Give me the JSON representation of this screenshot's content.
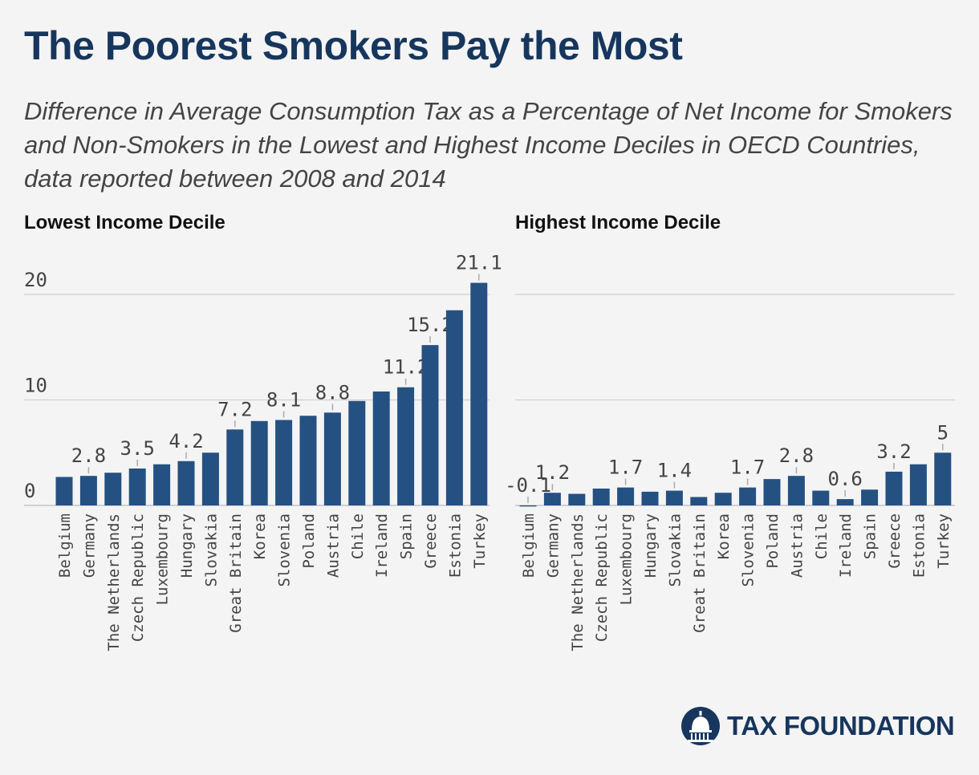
{
  "header": {
    "title": "The Poorest Smokers Pay the Most",
    "subtitle": "Difference in Average Consumption Tax as a Percentage of Net Income for Smokers and Non-Smokers in the Lowest and Highest Income Deciles in OECD Countries, data reported between 2008 and 2014"
  },
  "brand": {
    "name": "TAX FOUNDATION",
    "color": "#17365d"
  },
  "colors": {
    "bar": "#245182",
    "grid": "#d0d0d0",
    "text": "#444444"
  },
  "chart_data": [
    {
      "type": "bar",
      "title": "Lowest Income Decile",
      "categories": [
        "Belgium",
        "Germany",
        "The Netherlands",
        "Czech Republic",
        "Luxembourg",
        "Hungary",
        "Slovakia",
        "Great Britain",
        "Korea",
        "Slovenia",
        "Poland",
        "Austria",
        "Chile",
        "Ireland",
        "Spain",
        "Greece",
        "Estonia",
        "Turkey"
      ],
      "values": [
        2.7,
        2.8,
        3.1,
        3.5,
        3.9,
        4.2,
        5.0,
        7.2,
        8.0,
        8.1,
        8.5,
        8.8,
        9.9,
        10.8,
        11.2,
        15.2,
        18.5,
        21.1
      ],
      "labeled": [
        false,
        true,
        false,
        true,
        false,
        true,
        false,
        true,
        false,
        true,
        false,
        true,
        false,
        false,
        true,
        true,
        false,
        true
      ],
      "data_labels": [
        "",
        "2.8",
        "",
        "3.5",
        "",
        "4.2",
        "",
        "7.2",
        "",
        "8.1",
        "",
        "8.8",
        "",
        "",
        "11.2",
        "15.2",
        "",
        "21.1"
      ],
      "yticks": [
        0,
        10,
        20
      ],
      "ytick_labels": [
        "0",
        "10",
        "20"
      ],
      "ylim": [
        0,
        22
      ],
      "grid": true
    },
    {
      "type": "bar",
      "title": "Highest Income Decile",
      "categories": [
        "Belgium",
        "Germany",
        "The Netherlands",
        "Czech Republic",
        "Luxembourg",
        "Hungary",
        "Slovakia",
        "Great Britain",
        "Korea",
        "Slovenia",
        "Poland",
        "Austria",
        "Chile",
        "Ireland",
        "Spain",
        "Greece",
        "Estonia",
        "Turkey"
      ],
      "values": [
        -0.1,
        1.2,
        1.1,
        1.6,
        1.7,
        1.3,
        1.4,
        0.8,
        1.2,
        1.7,
        2.5,
        2.8,
        1.4,
        0.6,
        1.5,
        3.2,
        3.9,
        5.0
      ],
      "labeled": [
        true,
        true,
        false,
        false,
        true,
        false,
        true,
        false,
        false,
        true,
        false,
        true,
        false,
        true,
        false,
        true,
        false,
        true
      ],
      "data_labels": [
        "-0.1",
        "1.2",
        "",
        "",
        "1.7",
        "",
        "1.4",
        "",
        "",
        "1.7",
        "",
        "2.8",
        "",
        "0.6",
        "",
        "3.2",
        "",
        "5"
      ],
      "yticks": [
        0,
        10,
        20
      ],
      "ylim": [
        0,
        22
      ],
      "grid": true
    }
  ]
}
